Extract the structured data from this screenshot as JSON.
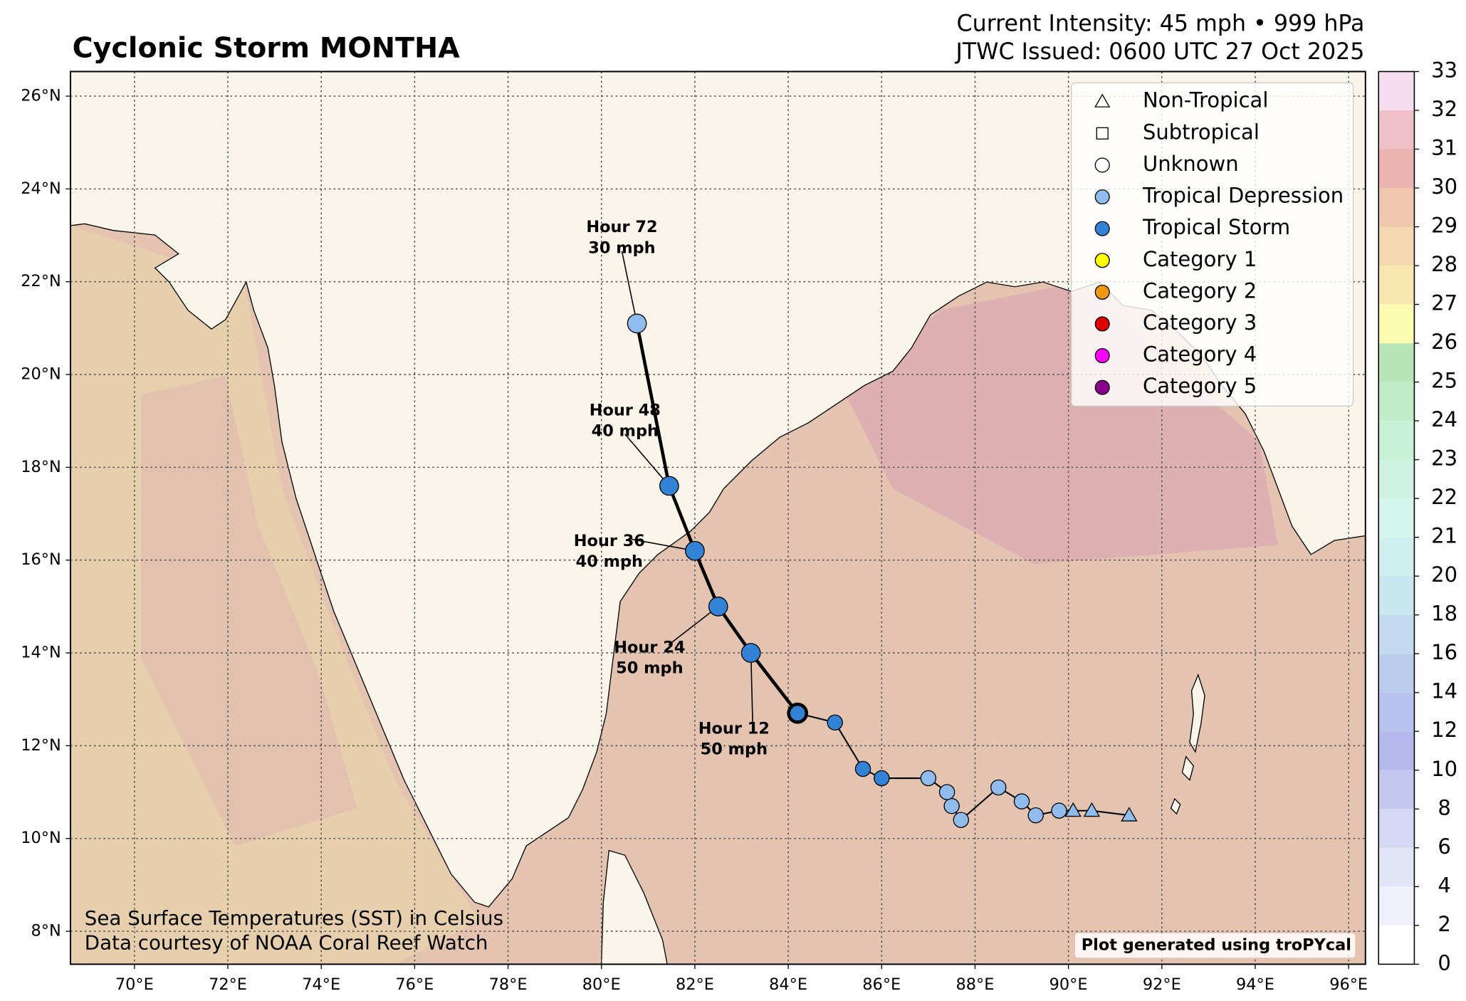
{
  "title": "Cyclonic Storm MONTHA",
  "header": {
    "intensity": "Current Intensity: 45 mph • 999 hPa",
    "issued": "JTWC Issued: 0600 UTC 27 Oct 2025"
  },
  "map": {
    "lonlim": [
      68.63,
      96.36
    ],
    "latlim": [
      7.29,
      26.53
    ],
    "grid": true,
    "lonticks": [
      {
        "value": 70,
        "label": "70°E"
      },
      {
        "value": 72,
        "label": "72°E"
      },
      {
        "value": 74,
        "label": "74°E"
      },
      {
        "value": 76,
        "label": "76°E"
      },
      {
        "value": 78,
        "label": "78°E"
      },
      {
        "value": 80,
        "label": "80°E"
      },
      {
        "value": 82,
        "label": "82°E"
      },
      {
        "value": 84,
        "label": "84°E"
      },
      {
        "value": 86,
        "label": "86°E"
      },
      {
        "value": 88,
        "label": "88°E"
      },
      {
        "value": 90,
        "label": "90°E"
      },
      {
        "value": 92,
        "label": "92°E"
      },
      {
        "value": 94,
        "label": "94°E"
      },
      {
        "value": 96,
        "label": "96°E"
      }
    ],
    "latticks": [
      {
        "value": 8,
        "label": "8°N"
      },
      {
        "value": 10,
        "label": "10°N"
      },
      {
        "value": 12,
        "label": "12°N"
      },
      {
        "value": 14,
        "label": "14°N"
      },
      {
        "value": 16,
        "label": "16°N"
      },
      {
        "value": 18,
        "label": "18°N"
      },
      {
        "value": 20,
        "label": "20°N"
      },
      {
        "value": 22,
        "label": "22°N"
      },
      {
        "value": 24,
        "label": "24°N"
      },
      {
        "value": 26,
        "label": "26°N"
      }
    ]
  },
  "colorbar": {
    "ticks": [
      0,
      2,
      4,
      6,
      8,
      10,
      12,
      14,
      16,
      18,
      20,
      21,
      22,
      23,
      24,
      25,
      26,
      27,
      28,
      29,
      30,
      31,
      32,
      33
    ],
    "colors": [
      "#ffffff",
      "#f0f0fc",
      "#e2e4f8",
      "#d4d8f4",
      "#c4c8f0",
      "#b4b8ec",
      "#b8c2ee",
      "#bccdee",
      "#c4daf0",
      "#c8e6f0",
      "#d0f0f0",
      "#d4f6ee",
      "#d0f2e2",
      "#c8f0d6",
      "#c0ecc8",
      "#b8e6b8",
      "#fcfcb0",
      "#f8e8b0",
      "#f4d8b0",
      "#f0c8b0",
      "#ecb4b0",
      "#f0c0c8",
      "#f8dcf0"
    ]
  },
  "legend": [
    {
      "label": "Non-Tropical",
      "marker": "triangle",
      "color": "#ffffff"
    },
    {
      "label": "Subtropical",
      "marker": "square",
      "color": "#ffffff"
    },
    {
      "label": "Unknown",
      "marker": "circle",
      "color": "#ffffff"
    },
    {
      "label": "Tropical Depression",
      "marker": "circle",
      "color": "#8fbcec"
    },
    {
      "label": "Tropical Storm",
      "marker": "circle",
      "color": "#3282d6"
    },
    {
      "label": "Category 1",
      "marker": "circle",
      "color": "#ffff00"
    },
    {
      "label": "Category 2",
      "marker": "circle",
      "color": "#f0960f"
    },
    {
      "label": "Category 3",
      "marker": "circle",
      "color": "#e00000"
    },
    {
      "label": "Category 4",
      "marker": "circle",
      "color": "#ff00ff"
    },
    {
      "label": "Category 5",
      "marker": "circle",
      "color": "#8b008b"
    }
  ],
  "track": {
    "past": [
      {
        "lon": 91.3,
        "lat": 10.5,
        "marker": "triangle",
        "color": "#8fbcec"
      },
      {
        "lon": 90.5,
        "lat": 10.6,
        "marker": "triangle",
        "color": "#8fbcec"
      },
      {
        "lon": 90.1,
        "lat": 10.6,
        "marker": "triangle",
        "color": "#8fbcec"
      },
      {
        "lon": 89.8,
        "lat": 10.6,
        "marker": "circle",
        "color": "#8fbcec"
      },
      {
        "lon": 89.3,
        "lat": 10.5,
        "marker": "circle",
        "color": "#8fbcec"
      },
      {
        "lon": 89.0,
        "lat": 10.8,
        "marker": "circle",
        "color": "#8fbcec"
      },
      {
        "lon": 88.5,
        "lat": 11.1,
        "marker": "circle",
        "color": "#8fbcec"
      },
      {
        "lon": 87.7,
        "lat": 10.4,
        "marker": "circle",
        "color": "#8fbcec"
      },
      {
        "lon": 87.5,
        "lat": 10.7,
        "marker": "circle",
        "color": "#8fbcec"
      },
      {
        "lon": 87.4,
        "lat": 11.0,
        "marker": "circle",
        "color": "#8fbcec"
      },
      {
        "lon": 87.0,
        "lat": 11.3,
        "marker": "circle",
        "color": "#8fbcec"
      },
      {
        "lon": 86.0,
        "lat": 11.3,
        "marker": "circle",
        "color": "#3282d6"
      },
      {
        "lon": 85.6,
        "lat": 11.5,
        "marker": "circle",
        "color": "#3282d6"
      },
      {
        "lon": 85.0,
        "lat": 12.5,
        "marker": "circle",
        "color": "#3282d6"
      }
    ],
    "current": {
      "lon": 84.2,
      "lat": 12.7,
      "marker": "circle",
      "color": "#3282d6"
    },
    "forecast": [
      {
        "lon": 83.2,
        "lat": 14.0,
        "marker": "circle",
        "color": "#3282d6",
        "label": "Hour 12",
        "wind": "50 mph"
      },
      {
        "lon": 82.5,
        "lat": 15.0,
        "marker": "circle",
        "color": "#3282d6",
        "label": "Hour 24",
        "wind": "50 mph"
      },
      {
        "lon": 82.0,
        "lat": 16.2,
        "marker": "circle",
        "color": "#3282d6",
        "label": "Hour 36",
        "wind": "40 mph"
      },
      {
        "lon": 81.45,
        "lat": 17.6,
        "marker": "circle",
        "color": "#3282d6",
        "label": "Hour 48",
        "wind": "40 mph"
      },
      {
        "lon": 80.76,
        "lat": 21.1,
        "marker": "circle",
        "color": "#8fbcec",
        "label": "Hour 72",
        "wind": "30 mph"
      }
    ]
  },
  "footer": {
    "line1": "Sea Surface Temperatures (SST) in Celsius",
    "line2": "Data courtesy of NOAA Coral Reef Watch",
    "credit": "Plot generated using troPYcal"
  }
}
